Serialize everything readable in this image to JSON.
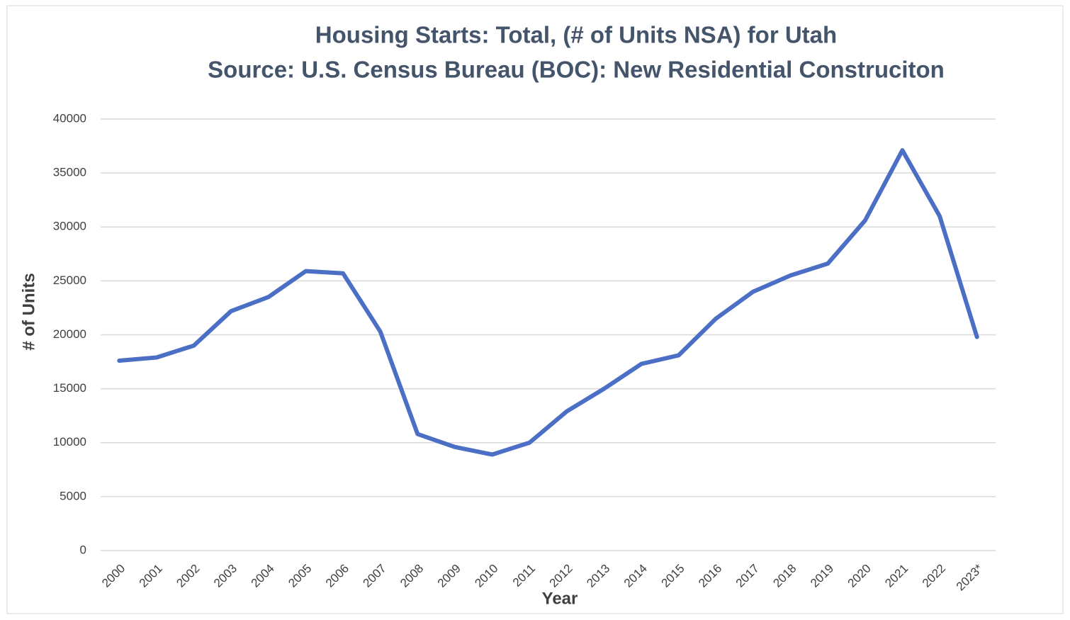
{
  "chart_data": {
    "type": "line",
    "title": "Housing Starts: Total, (# of Units NSA) for Utah",
    "subtitle": "Source: U.S. Census Bureau (BOC): New Residential Construciton",
    "x_label": "Year",
    "y_label": "# of Units",
    "categories": [
      "2000",
      "2001",
      "2002",
      "2003",
      "2004",
      "2005",
      "2006",
      "2007",
      "2008",
      "2009",
      "2010",
      "2011",
      "2012",
      "2013",
      "2014",
      "2015",
      "2016",
      "2017",
      "2018",
      "2019",
      "2020",
      "2021",
      "2022",
      "2023*"
    ],
    "series": [
      {
        "name": "Housing Starts",
        "color": "#4a6fc4",
        "values": [
          17600,
          17900,
          19000,
          22200,
          23500,
          25900,
          25700,
          20300,
          10800,
          9600,
          8900,
          10000,
          12900,
          15000,
          17300,
          18100,
          21500,
          24000,
          25500,
          26600,
          30600,
          37100,
          31000,
          19800
        ]
      }
    ],
    "ylim": [
      0,
      40000
    ],
    "yticks": [
      0,
      5000,
      10000,
      15000,
      20000,
      25000,
      30000,
      35000,
      40000
    ],
    "grid": true
  }
}
